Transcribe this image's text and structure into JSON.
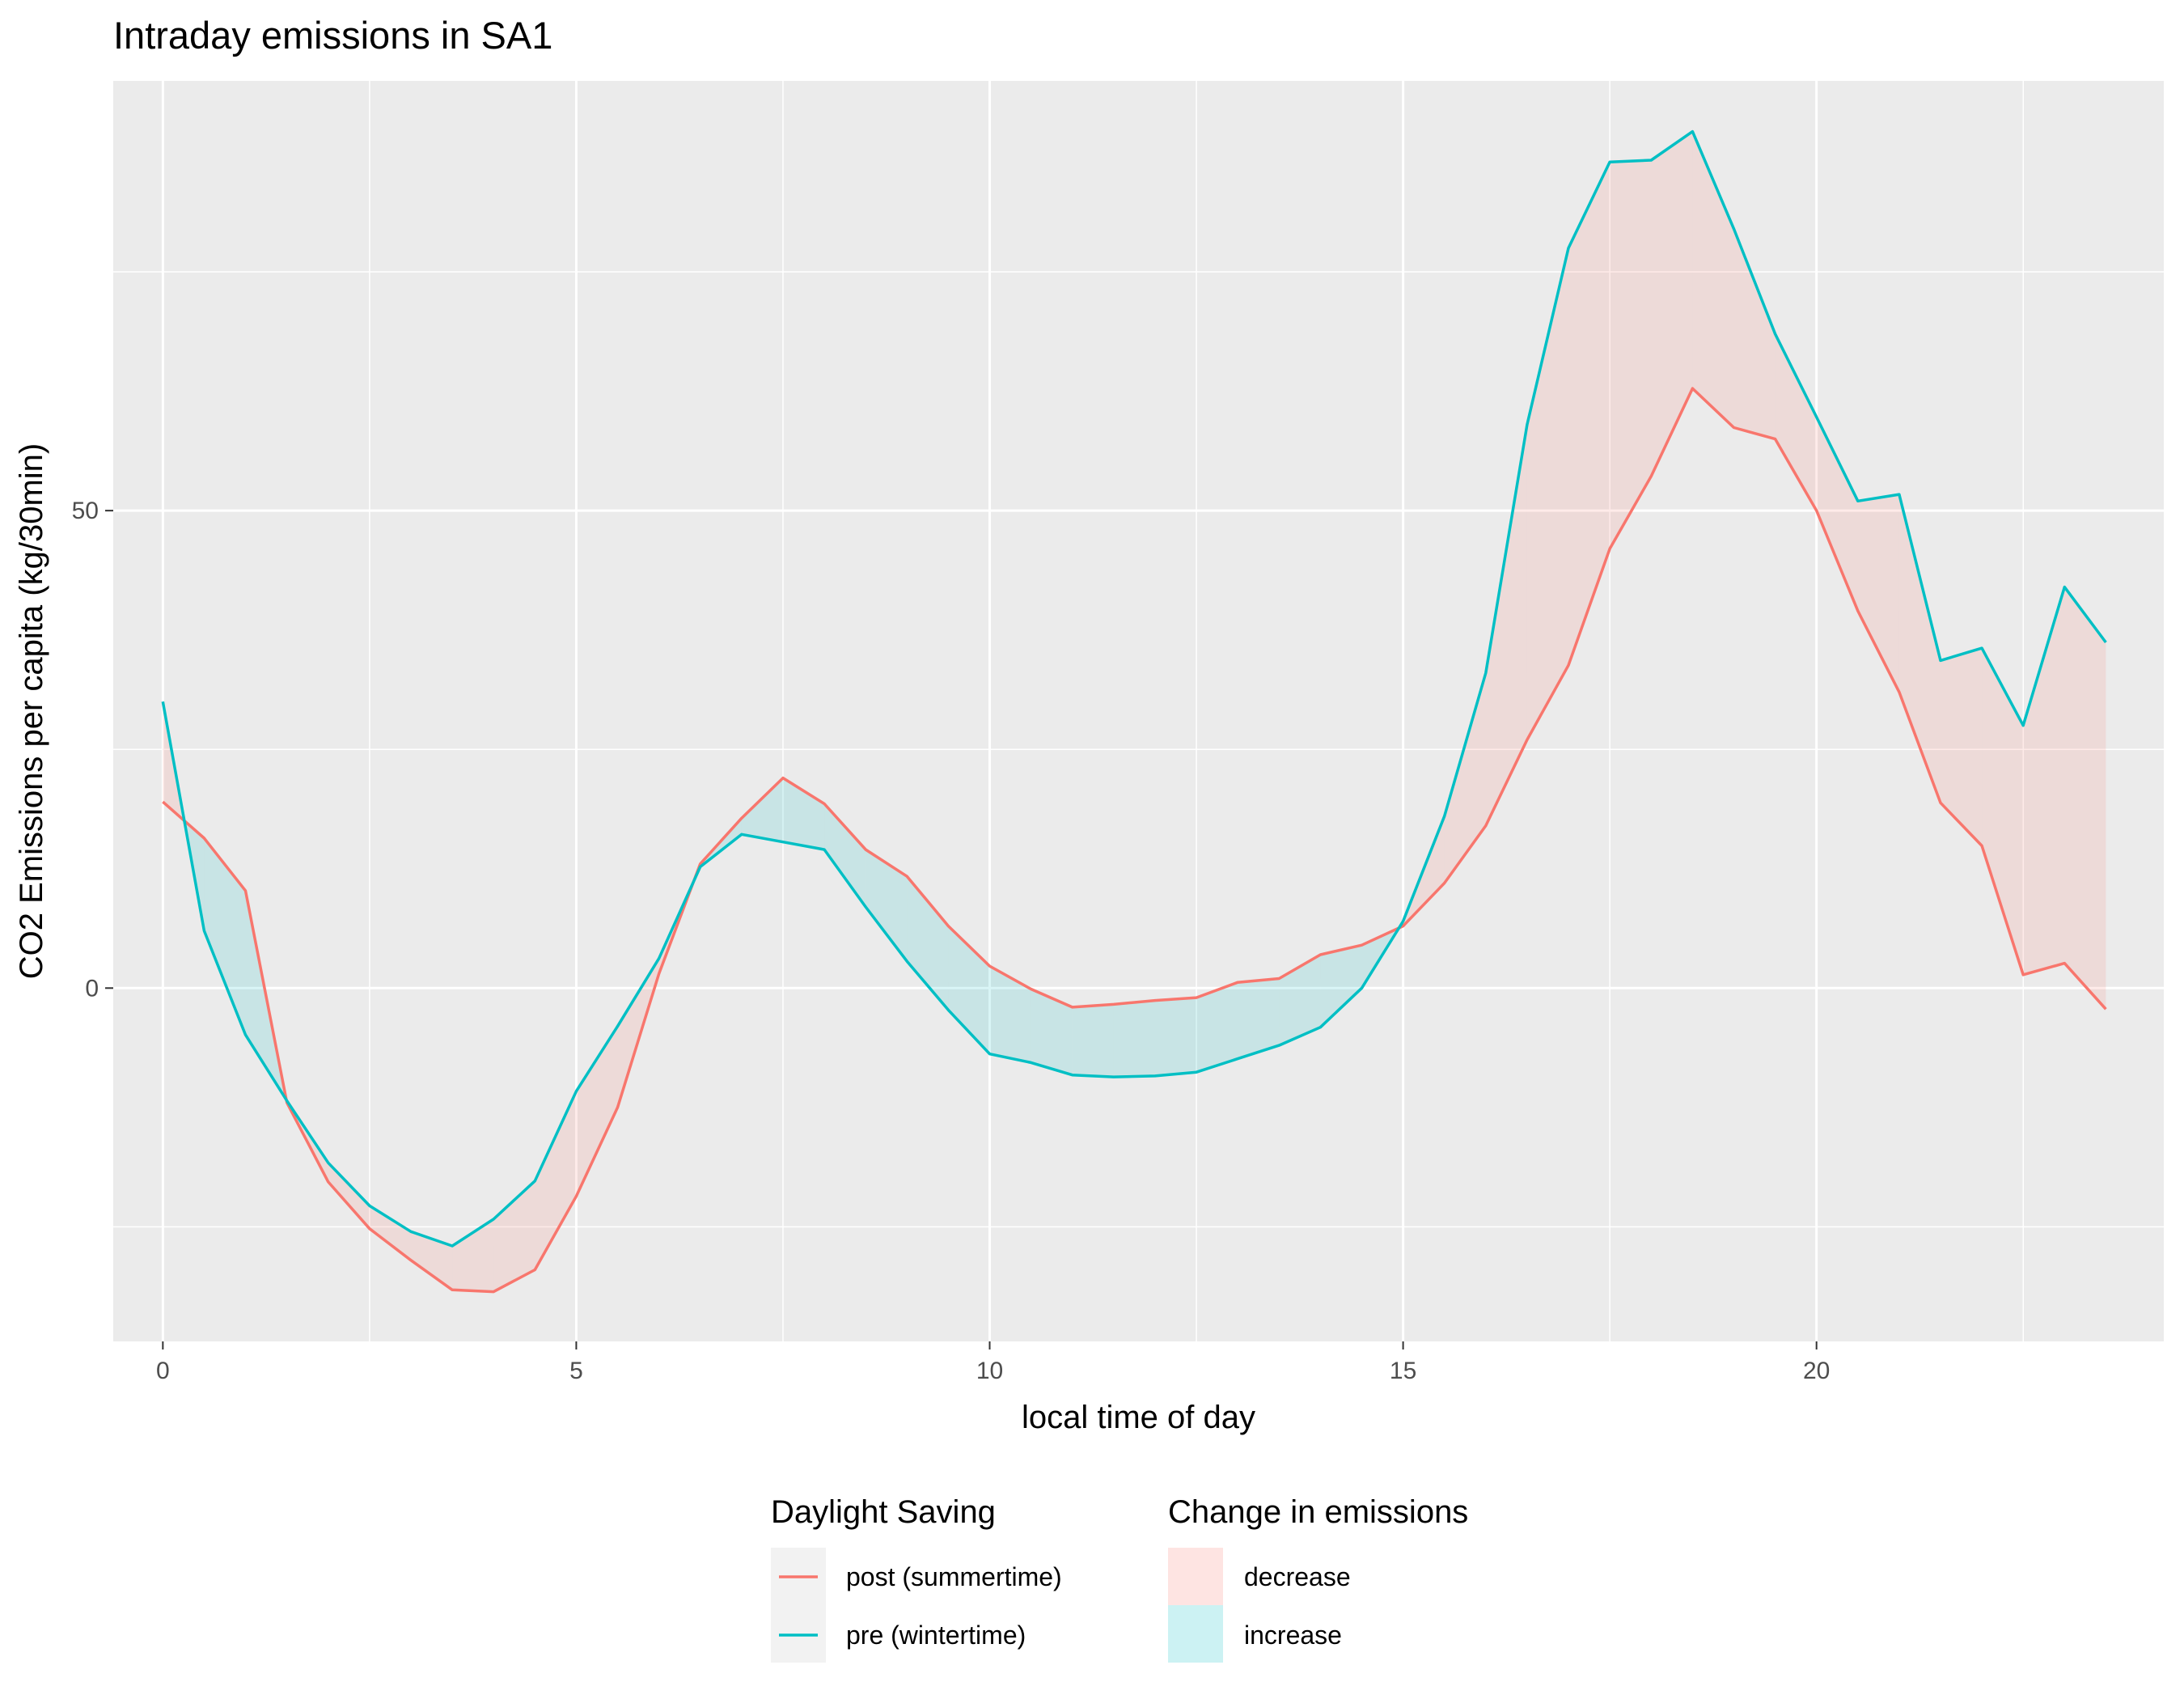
{
  "chart_data": {
    "type": "line",
    "title": "Intraday emissions in SA1",
    "xlabel": "local time of day",
    "ylabel": "CO2 Emissions per capita (kg/30min)",
    "xlim": [
      -0.6,
      24.2
    ],
    "ylim": [
      -37,
      95
    ],
    "x_ticks": [
      0,
      5,
      10,
      15,
      20
    ],
    "y_ticks": [
      0,
      50
    ],
    "x_tick_labels": [
      "0",
      "5",
      "10",
      "15",
      "20"
    ],
    "y_tick_labels": [
      "0",
      "50"
    ],
    "x": [
      0,
      0.5,
      1,
      1.5,
      2,
      2.5,
      3,
      3.5,
      4,
      4.5,
      5,
      5.5,
      6,
      6.5,
      7,
      7.5,
      8,
      8.5,
      9,
      9.5,
      10,
      10.5,
      11,
      11.5,
      12,
      12.5,
      13,
      13.5,
      14,
      14.5,
      15,
      15.5,
      16,
      16.5,
      17,
      17.5,
      18,
      18.5,
      19,
      19.5,
      20,
      20.5,
      21,
      21.5,
      22,
      22.5,
      23,
      23.5
    ],
    "series": [
      {
        "name": "post (summertime)",
        "color": "#F8766D",
        "values": [
          19.5,
          15.7,
          10.2,
          -12.0,
          -20.3,
          -25.2,
          -28.5,
          -31.6,
          -31.8,
          -29.5,
          -21.8,
          -12.5,
          1.5,
          13.0,
          17.8,
          22.0,
          19.3,
          14.5,
          11.7,
          6.5,
          2.3,
          -0.1,
          -2.0,
          -1.7,
          -1.3,
          -1.0,
          0.6,
          1.0,
          3.5,
          4.5,
          6.5,
          11.0,
          17.0,
          26.0,
          33.8,
          46.0,
          53.6,
          62.8,
          58.7,
          57.5,
          50.0,
          39.5,
          31.0,
          19.4,
          14.9,
          1.4,
          2.6,
          -2.2
        ]
      },
      {
        "name": "pre (wintertime)",
        "color": "#00BFC4",
        "values": [
          30.0,
          6.0,
          -4.9,
          -11.8,
          -18.3,
          -22.8,
          -25.5,
          -27.0,
          -24.2,
          -20.2,
          -10.8,
          -4.0,
          3.1,
          12.7,
          16.1,
          15.3,
          14.5,
          8.5,
          2.8,
          -2.3,
          -6.9,
          -7.8,
          -9.1,
          -9.3,
          -9.2,
          -8.8,
          -7.4,
          -6.0,
          -4.1,
          0.0,
          7.0,
          18.0,
          33.0,
          59.0,
          77.5,
          86.5,
          86.7,
          89.7,
          79.5,
          68.5,
          59.8,
          51.0,
          51.7,
          34.3,
          35.6,
          27.5,
          42.0,
          36.2
        ]
      }
    ],
    "ribbon_fills": {
      "decrease": "#F8766D",
      "increase": "#00BFC4"
    },
    "legends": [
      {
        "title": "Daylight Saving",
        "entries": [
          "post (summertime)",
          "pre (wintertime)"
        ]
      },
      {
        "title": "Change in emissions",
        "entries": [
          "decrease",
          "increase"
        ]
      }
    ],
    "legend_position": "bottom",
    "grid": true
  }
}
